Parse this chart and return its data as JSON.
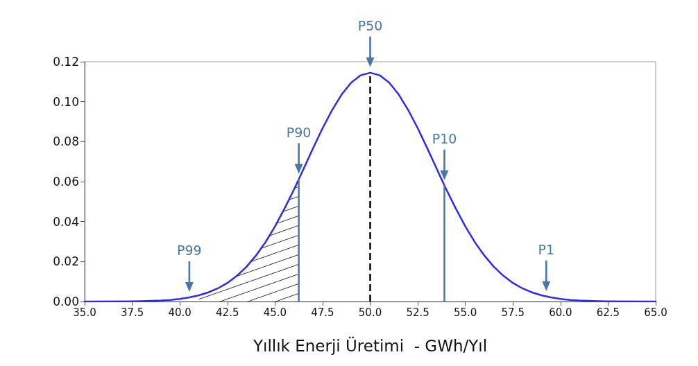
{
  "chart_data": {
    "type": "line",
    "xlabel": "Yıllık Enerji Üretimi  - GWh/Yıl",
    "x": [
      35,
      37.5,
      38,
      39,
      39.5,
      40,
      40.5,
      41,
      41.5,
      42,
      42.5,
      43,
      43.5,
      44,
      44.5,
      45,
      45.5,
      46,
      46.5,
      47,
      47.5,
      48,
      48.5,
      49,
      49.5,
      50,
      50.5,
      51,
      51.5,
      52,
      52.5,
      53,
      53.5,
      54,
      54.5,
      55,
      55.5,
      56,
      56.5,
      57,
      57.5,
      58,
      58.5,
      59,
      59.5,
      60,
      60.5,
      61,
      62,
      62.5,
      65
    ],
    "series": [
      {
        "color": "#2b2bef",
        "values": [
          0,
          0.0001,
          0.0002,
          0.0005,
          0.0008,
          0.0013,
          0.0021,
          0.0031,
          0.0046,
          0.0066,
          0.0093,
          0.0129,
          0.0174,
          0.023,
          0.0297,
          0.0376,
          0.0465,
          0.0561,
          0.0663,
          0.0767,
          0.0867,
          0.0958,
          0.1036,
          0.1095,
          0.1132,
          0.1145,
          0.1132,
          0.1095,
          0.1036,
          0.0958,
          0.0867,
          0.0767,
          0.0663,
          0.0561,
          0.0465,
          0.0376,
          0.0297,
          0.023,
          0.0174,
          0.0129,
          0.0093,
          0.0066,
          0.0046,
          0.0031,
          0.0021,
          0.0013,
          0.0008,
          0.0005,
          0.0002,
          0.0001,
          0
        ]
      },
      {
        "type": "area",
        "color": "#333333",
        "x": [
          41,
          41.5,
          42,
          42.5,
          43,
          43.5,
          44,
          44.5,
          45,
          45.5,
          46,
          46.25
        ],
        "values": [
          0.0031,
          0.0046,
          0.0066,
          0.0093,
          0.0129,
          0.0174,
          0.023,
          0.0297,
          0.0376,
          0.0465,
          0.0561,
          0.0612
        ]
      },
      {
        "color": "#4a76a8",
        "x": [
          46.25,
          46.25
        ],
        "values": [
          0,
          0.0612
        ]
      },
      {
        "color": "#4a76a8",
        "x": [
          53.9,
          53.9
        ],
        "values": [
          0,
          0.058
        ]
      }
    ],
    "ref_lines": [
      {
        "axis": "x",
        "value": 50,
        "color": "#000000",
        "line_style": "dashed"
      }
    ],
    "xlim": [
      35,
      65
    ],
    "xticks": [
      {
        "value": 35,
        "label": "35.0"
      },
      {
        "value": 37.5,
        "label": "37.5"
      },
      {
        "value": 40,
        "label": "40.0"
      },
      {
        "value": 42.5,
        "label": "42.5"
      },
      {
        "value": 45,
        "label": "45.0"
      },
      {
        "value": 47.5,
        "label": "47.5"
      },
      {
        "value": 50,
        "label": "50.0"
      },
      {
        "value": 52.5,
        "label": "52.5"
      },
      {
        "value": 55,
        "label": "55.0"
      },
      {
        "value": 57.5,
        "label": "57.5"
      },
      {
        "value": 60,
        "label": "60.0"
      },
      {
        "value": 62.5,
        "label": "62.5"
      },
      {
        "value": 65,
        "label": "65.0"
      }
    ],
    "ylim": [
      0,
      0.12
    ],
    "yticks": [
      {
        "value": 0,
        "label": "0.00"
      },
      {
        "value": 0.02,
        "label": "0.02"
      },
      {
        "value": 0.04,
        "label": "0.04"
      },
      {
        "value": 0.06,
        "label": "0.06"
      },
      {
        "value": 0.08,
        "label": "0.08"
      },
      {
        "value": 0.1,
        "label": "0.10"
      },
      {
        "value": 0.12,
        "label": "0.12"
      }
    ],
    "annotations": [
      {
        "text": "P50",
        "x": 50,
        "y": 0.1145
      },
      {
        "text": "P90",
        "x": 46.25,
        "y": 0.0612
      },
      {
        "text": "P10",
        "x": 53.9,
        "y": 0.058
      },
      {
        "text": "P99",
        "x": 40.5,
        "y": 0.0021
      },
      {
        "text": "P1",
        "x": 59.25,
        "y": 0.0025
      }
    ],
    "grid": false,
    "marker": "none",
    "line_style": "solid"
  }
}
